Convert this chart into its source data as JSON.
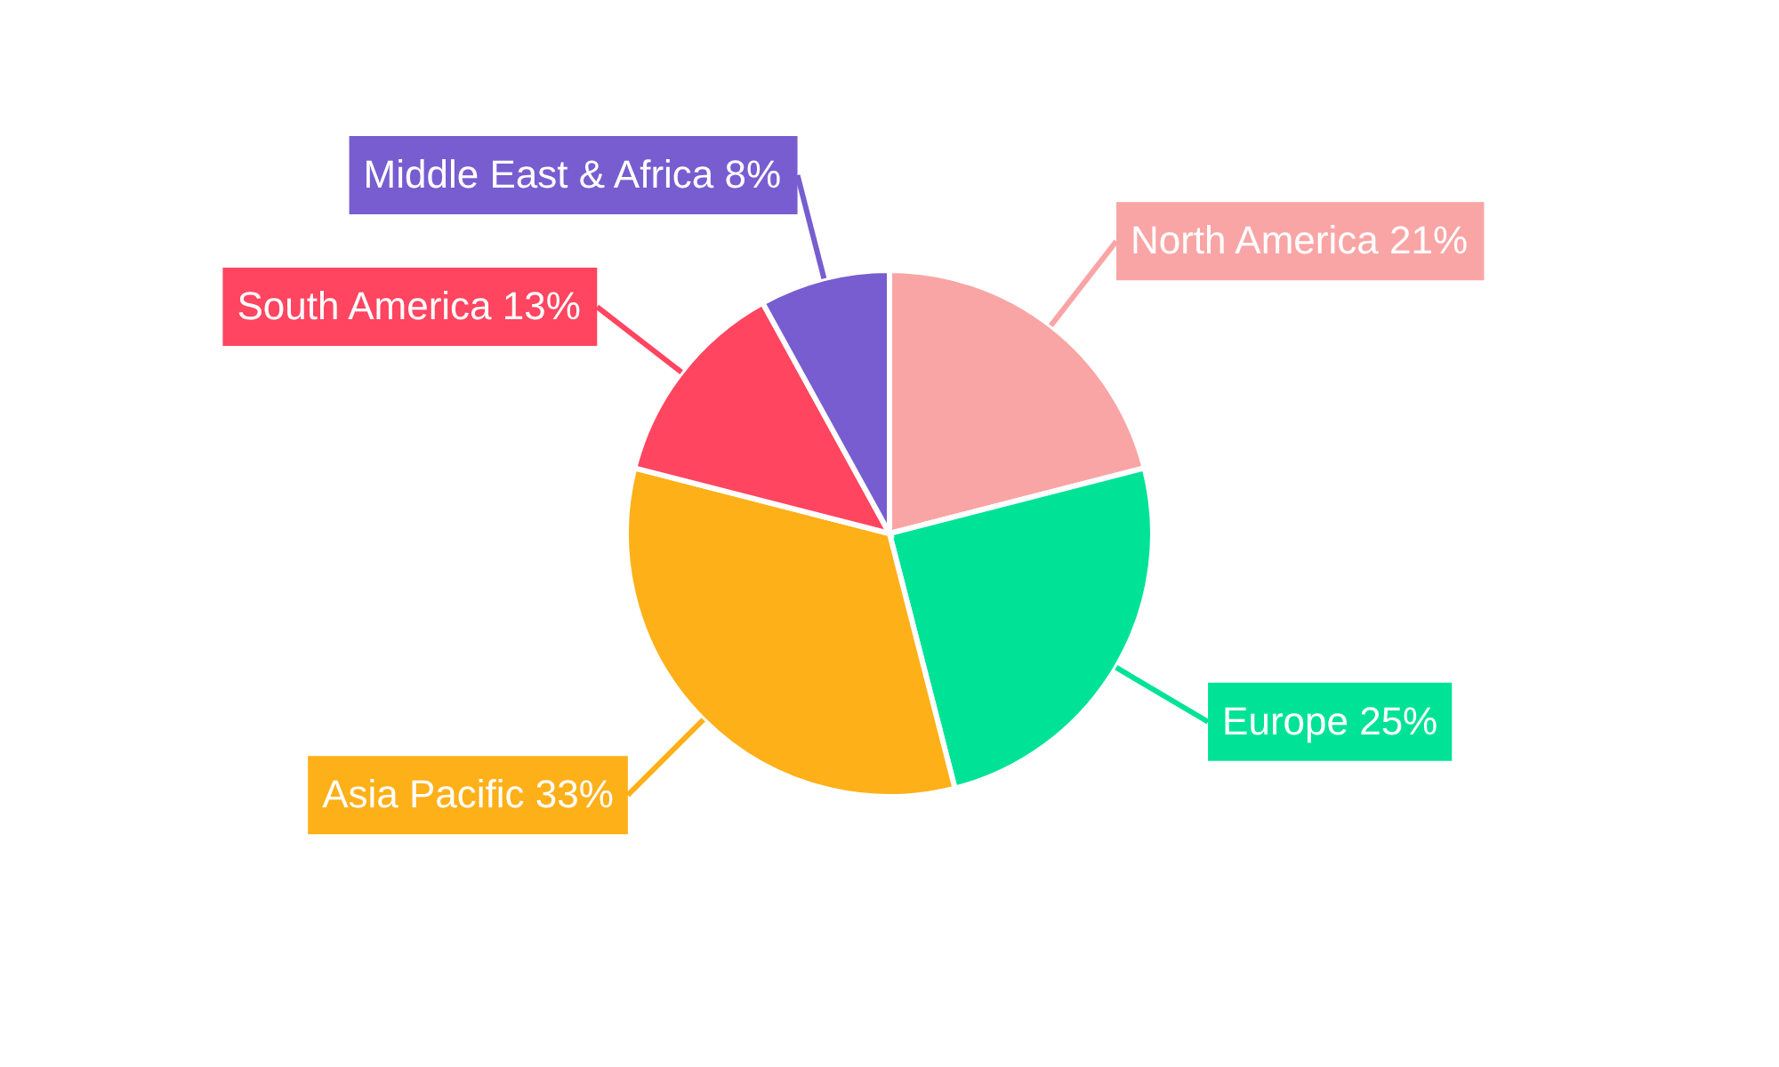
{
  "chart_data": {
    "type": "pie",
    "categories": [
      "North America",
      "Europe",
      "Asia Pacific",
      "South America",
      "Middle East & Africa"
    ],
    "values": [
      21,
      25,
      33,
      13,
      8
    ],
    "value_labels": [
      "21%",
      "25%",
      "33%",
      "13%",
      "8%"
    ],
    "colors": [
      "#f9a5a5",
      "#00e396",
      "#feb019",
      "#ff4560",
      "#775dd0"
    ]
  }
}
